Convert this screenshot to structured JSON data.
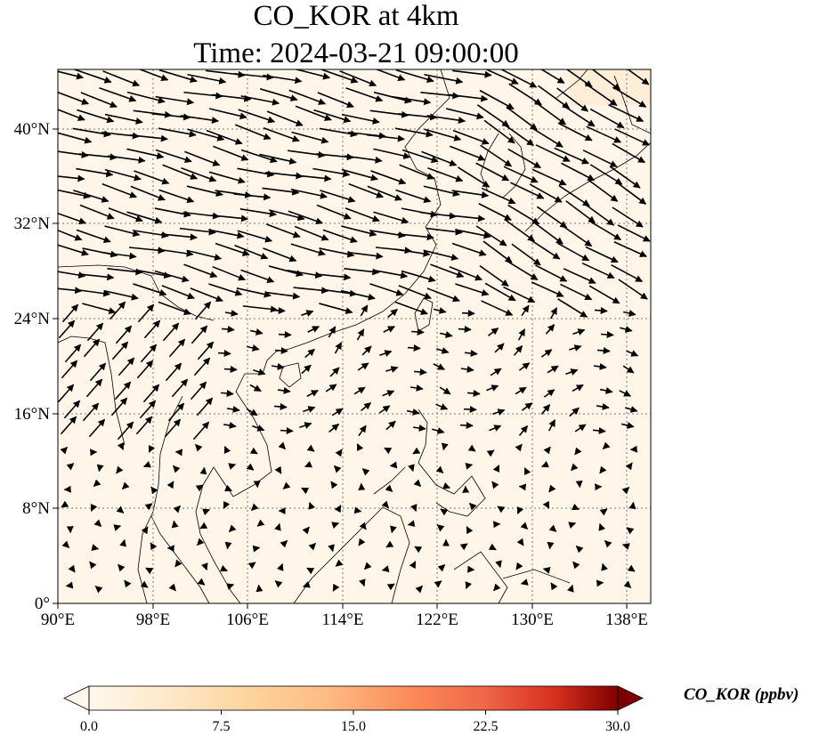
{
  "title": {
    "line1": "CO_KOR at 4km",
    "line2": "Time: 2024-03-21 09:00:00"
  },
  "map": {
    "lon_range": [
      90,
      140
    ],
    "lat_range": [
      0,
      45
    ],
    "lon_ticks": [
      "90°E",
      "98°E",
      "106°E",
      "114°E",
      "122°E",
      "130°E",
      "138°E"
    ],
    "lat_ticks": [
      "0°",
      "8°N",
      "16°N",
      "24°N",
      "32°N",
      "40°N"
    ],
    "gridlines": true,
    "field_color": "#fff5e8",
    "coast_color": "#000000"
  },
  "colorbar": {
    "label": "CO_KOR (ppbv)",
    "ticks": [
      "0.0",
      "7.5",
      "15.0",
      "22.5",
      "30.0"
    ],
    "range": [
      0,
      30
    ],
    "cmap": "OrRd",
    "extend": "both"
  }
}
